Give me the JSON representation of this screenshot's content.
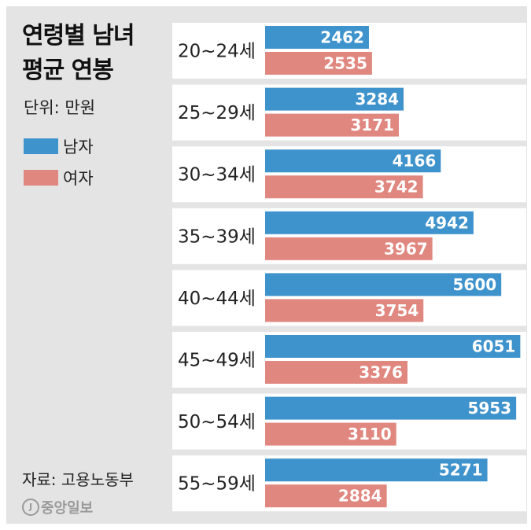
{
  "chart_data": {
    "type": "bar",
    "orientation": "horizontal",
    "title": "연령별 남녀 평균 연봉",
    "title_lines": [
      "연령별 남녀",
      "평균 연봉"
    ],
    "unit": "단위: 만원",
    "categories": [
      "20~24세",
      "25~29세",
      "30~34세",
      "35~39세",
      "40~44세",
      "45~49세",
      "50~54세",
      "55~59세"
    ],
    "series": [
      {
        "name": "남자",
        "color": "#3f93cc",
        "values": [
          2462,
          3284,
          4166,
          4942,
          5600,
          6051,
          5953,
          5271
        ]
      },
      {
        "name": "여자",
        "color": "#e0877f",
        "values": [
          2535,
          3171,
          3742,
          3967,
          3754,
          3376,
          3110,
          2884
        ]
      }
    ],
    "xlim": [
      0,
      6100
    ],
    "legend_position": "left",
    "source": "자료: 고용노동부"
  },
  "publisher": {
    "logo_mark": "J",
    "logo_text": "중앙일보"
  }
}
